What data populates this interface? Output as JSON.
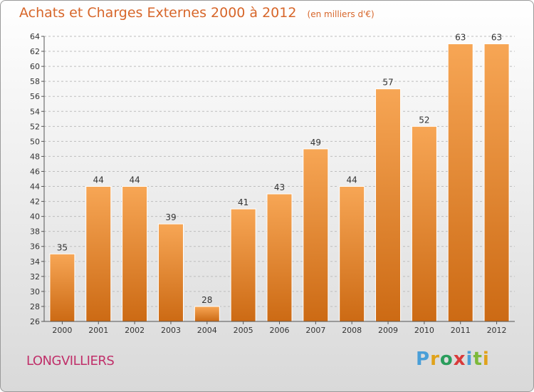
{
  "title": "Achats et Charges Externes 2000 à 2012",
  "unit": "(en milliers d'€)",
  "location": "LONGVILLIERS",
  "logo": {
    "text": "Proxiti",
    "letters": [
      {
        "ch": "P",
        "color": "#4a9fd8"
      },
      {
        "ch": "r",
        "color": "#e0a21a"
      },
      {
        "ch": "o",
        "color": "#2a9d5c"
      },
      {
        "ch": "x",
        "color": "#d93a3a"
      },
      {
        "ch": "i",
        "color": "#4a9fd8"
      },
      {
        "ch": "t",
        "color": "#7cb93a"
      },
      {
        "ch": "i",
        "color": "#e0a21a"
      }
    ]
  },
  "colors": {
    "bar_top": "#f7a655",
    "bar_bottom": "#cc6a14",
    "title": "#d7662a",
    "location": "#c0306a"
  },
  "chart_data": {
    "type": "bar",
    "categories": [
      "2000",
      "2001",
      "2002",
      "2003",
      "2004",
      "2005",
      "2006",
      "2007",
      "2008",
      "2009",
      "2010",
      "2011",
      "2012"
    ],
    "values": [
      35,
      44,
      44,
      39,
      28,
      41,
      43,
      49,
      44,
      57,
      52,
      63,
      63
    ],
    "title": "Achats et Charges Externes 2000 à 2012",
    "subtitle": "(en milliers d'€)",
    "xlabel": "",
    "ylabel": "",
    "ylim": [
      26,
      64
    ],
    "yticks": [
      26,
      28,
      30,
      32,
      34,
      36,
      38,
      40,
      42,
      44,
      46,
      48,
      50,
      52,
      54,
      56,
      58,
      60,
      62,
      64
    ],
    "grid": "horizontal dashed",
    "data_labels": true
  }
}
